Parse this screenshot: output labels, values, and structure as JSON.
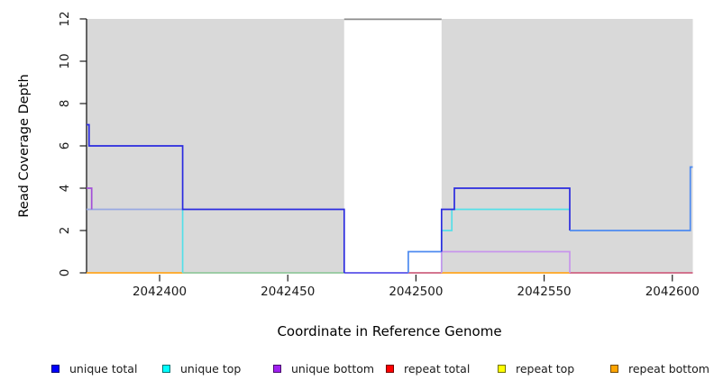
{
  "chart_data": {
    "type": "line",
    "title": "",
    "xlabel": "Coordinate in Reference Genome",
    "ylabel": "Read Coverage Depth",
    "xlim": [
      2042371.5,
      2042608
    ],
    "ylim": [
      0,
      12
    ],
    "x_ticks": [
      2042400,
      2042450,
      2042500,
      2042550,
      2042600
    ],
    "y_ticks": [
      0,
      2,
      4,
      6,
      8,
      10,
      12
    ],
    "grid": "off",
    "legend_position": "bottom",
    "background_shading": {
      "color": "#D9D9D9",
      "regions": [
        [
          2042371.5,
          2042472
        ],
        [
          2042510,
          2042608
        ]
      ],
      "gap_top_line_color": "#8C8C8C"
    },
    "legend": [
      {
        "label": "unique total",
        "color": "#0000FF"
      },
      {
        "label": "unique top",
        "color": "#00FFFF"
      },
      {
        "label": "unique bottom",
        "color": "#A020F0"
      },
      {
        "label": "repeat total",
        "color": "#FF0000"
      },
      {
        "label": "repeat top",
        "color": "#FFFF00"
      },
      {
        "label": "repeat bottom",
        "color": "#FFA500"
      }
    ],
    "series_segments": [
      {
        "name": "repeat-bottom-left",
        "color": "#FFA520",
        "points": [
          [
            2042371.5,
            0
          ],
          [
            2042409,
            0
          ]
        ]
      },
      {
        "name": "top-and-bottom-zero-mix",
        "color": "#92C89C",
        "points": [
          [
            2042409,
            0
          ],
          [
            2042472,
            0
          ]
        ]
      },
      {
        "name": "repeat-total-gap-zero",
        "color": "#CE6280",
        "points": [
          [
            2042497,
            0
          ],
          [
            2042510,
            0
          ]
        ]
      },
      {
        "name": "repeat-bottom-mid",
        "color": "#FFA520",
        "points": [
          [
            2042510,
            0
          ],
          [
            2042560,
            0
          ]
        ]
      },
      {
        "name": "repeat-total-right-zero",
        "color": "#CE6280",
        "points": [
          [
            2042560,
            0
          ],
          [
            2042608,
            0
          ]
        ]
      },
      {
        "name": "unique-top-bottom-overlap",
        "color": "#98A8E2",
        "points": [
          [
            2042371.5,
            3
          ],
          [
            2042409,
            3
          ]
        ]
      },
      {
        "name": "unique-bottom-start",
        "color": "#A34FD8",
        "points": [
          [
            2042371.5,
            4
          ],
          [
            2042373.5,
            4
          ],
          [
            2042373.5,
            3
          ]
        ]
      },
      {
        "name": "unique-top-drop",
        "color": "#55DFE8",
        "points": [
          [
            2042409,
            3
          ],
          [
            2042409,
            0
          ]
        ]
      },
      {
        "name": "unique-top-right",
        "color": "#55DFE8",
        "points": [
          [
            2042510,
            0
          ],
          [
            2042510,
            2
          ],
          [
            2042514,
            2
          ],
          [
            2042514,
            3
          ],
          [
            2042560,
            3
          ]
        ]
      },
      {
        "name": "unique-bottom-right",
        "color": "#C795EC",
        "points": [
          [
            2042510,
            0
          ],
          [
            2042510,
            1
          ],
          [
            2042560,
            1
          ],
          [
            2042560,
            0
          ]
        ]
      },
      {
        "name": "total-bottom-zero-overlap",
        "color": "#5A52E8",
        "points": [
          [
            2042472,
            0
          ],
          [
            2042497,
            0
          ]
        ]
      },
      {
        "name": "unique-total-left",
        "color": "#2B2BDF",
        "points": [
          [
            2042371.5,
            7
          ],
          [
            2042372.5,
            7
          ],
          [
            2042372.5,
            6
          ],
          [
            2042409,
            6
          ],
          [
            2042409,
            3
          ],
          [
            2042472,
            3
          ],
          [
            2042472,
            0
          ]
        ]
      },
      {
        "name": "unique-total-gap-step",
        "color": "#4D8AF0",
        "points": [
          [
            2042497,
            0
          ],
          [
            2042497,
            1
          ],
          [
            2042510,
            1
          ]
        ]
      },
      {
        "name": "unique-total-mid",
        "color": "#2B2BDF",
        "points": [
          [
            2042510,
            1
          ],
          [
            2042510,
            3
          ],
          [
            2042515,
            3
          ],
          [
            2042515,
            4
          ],
          [
            2042560,
            4
          ],
          [
            2042560,
            2
          ]
        ]
      },
      {
        "name": "unique-total-right",
        "color": "#4D8AF0",
        "points": [
          [
            2042560,
            2
          ],
          [
            2042607,
            2
          ],
          [
            2042607,
            5
          ],
          [
            2042608,
            5
          ]
        ]
      }
    ]
  }
}
